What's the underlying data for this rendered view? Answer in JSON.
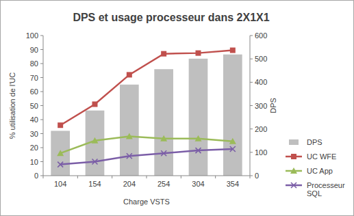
{
  "chart_data": {
    "type": "bar",
    "title": "DPS et usage processeur dans 2X1X1",
    "x_label": "Charge VSTS",
    "y_label": "% utilisation de l'UC",
    "y2_label": "DPS",
    "categories": [
      "104",
      "154",
      "204",
      "254",
      "304",
      "354"
    ],
    "series": [
      {
        "name": "DPS",
        "type": "bar",
        "axis": "y2",
        "color": "#bfbfbf",
        "values": [
          192,
          279,
          390,
          456,
          501,
          519
        ]
      },
      {
        "name": "UC WFE",
        "type": "line",
        "color": "#c0504d",
        "marker": "square",
        "values": [
          36,
          51,
          72,
          87,
          87.5,
          89.5
        ]
      },
      {
        "name": "UC App",
        "type": "line",
        "color": "#9bbb59",
        "marker": "triangle",
        "values": [
          16,
          25,
          28,
          26.5,
          26.5,
          24.5
        ]
      },
      {
        "name": "Processeur SQL",
        "type": "line",
        "color": "#7b5ea7",
        "marker": "x",
        "values": [
          8,
          10,
          14,
          16,
          18,
          19
        ]
      }
    ],
    "ylim": [
      0,
      100
    ],
    "yticks": [
      0,
      10,
      20,
      30,
      40,
      50,
      60,
      70,
      80,
      90,
      100
    ],
    "y2lim": [
      0,
      600
    ],
    "y2ticks": [
      0,
      100,
      200,
      300,
      400,
      500,
      600
    ],
    "grid": false,
    "legend": "right"
  }
}
